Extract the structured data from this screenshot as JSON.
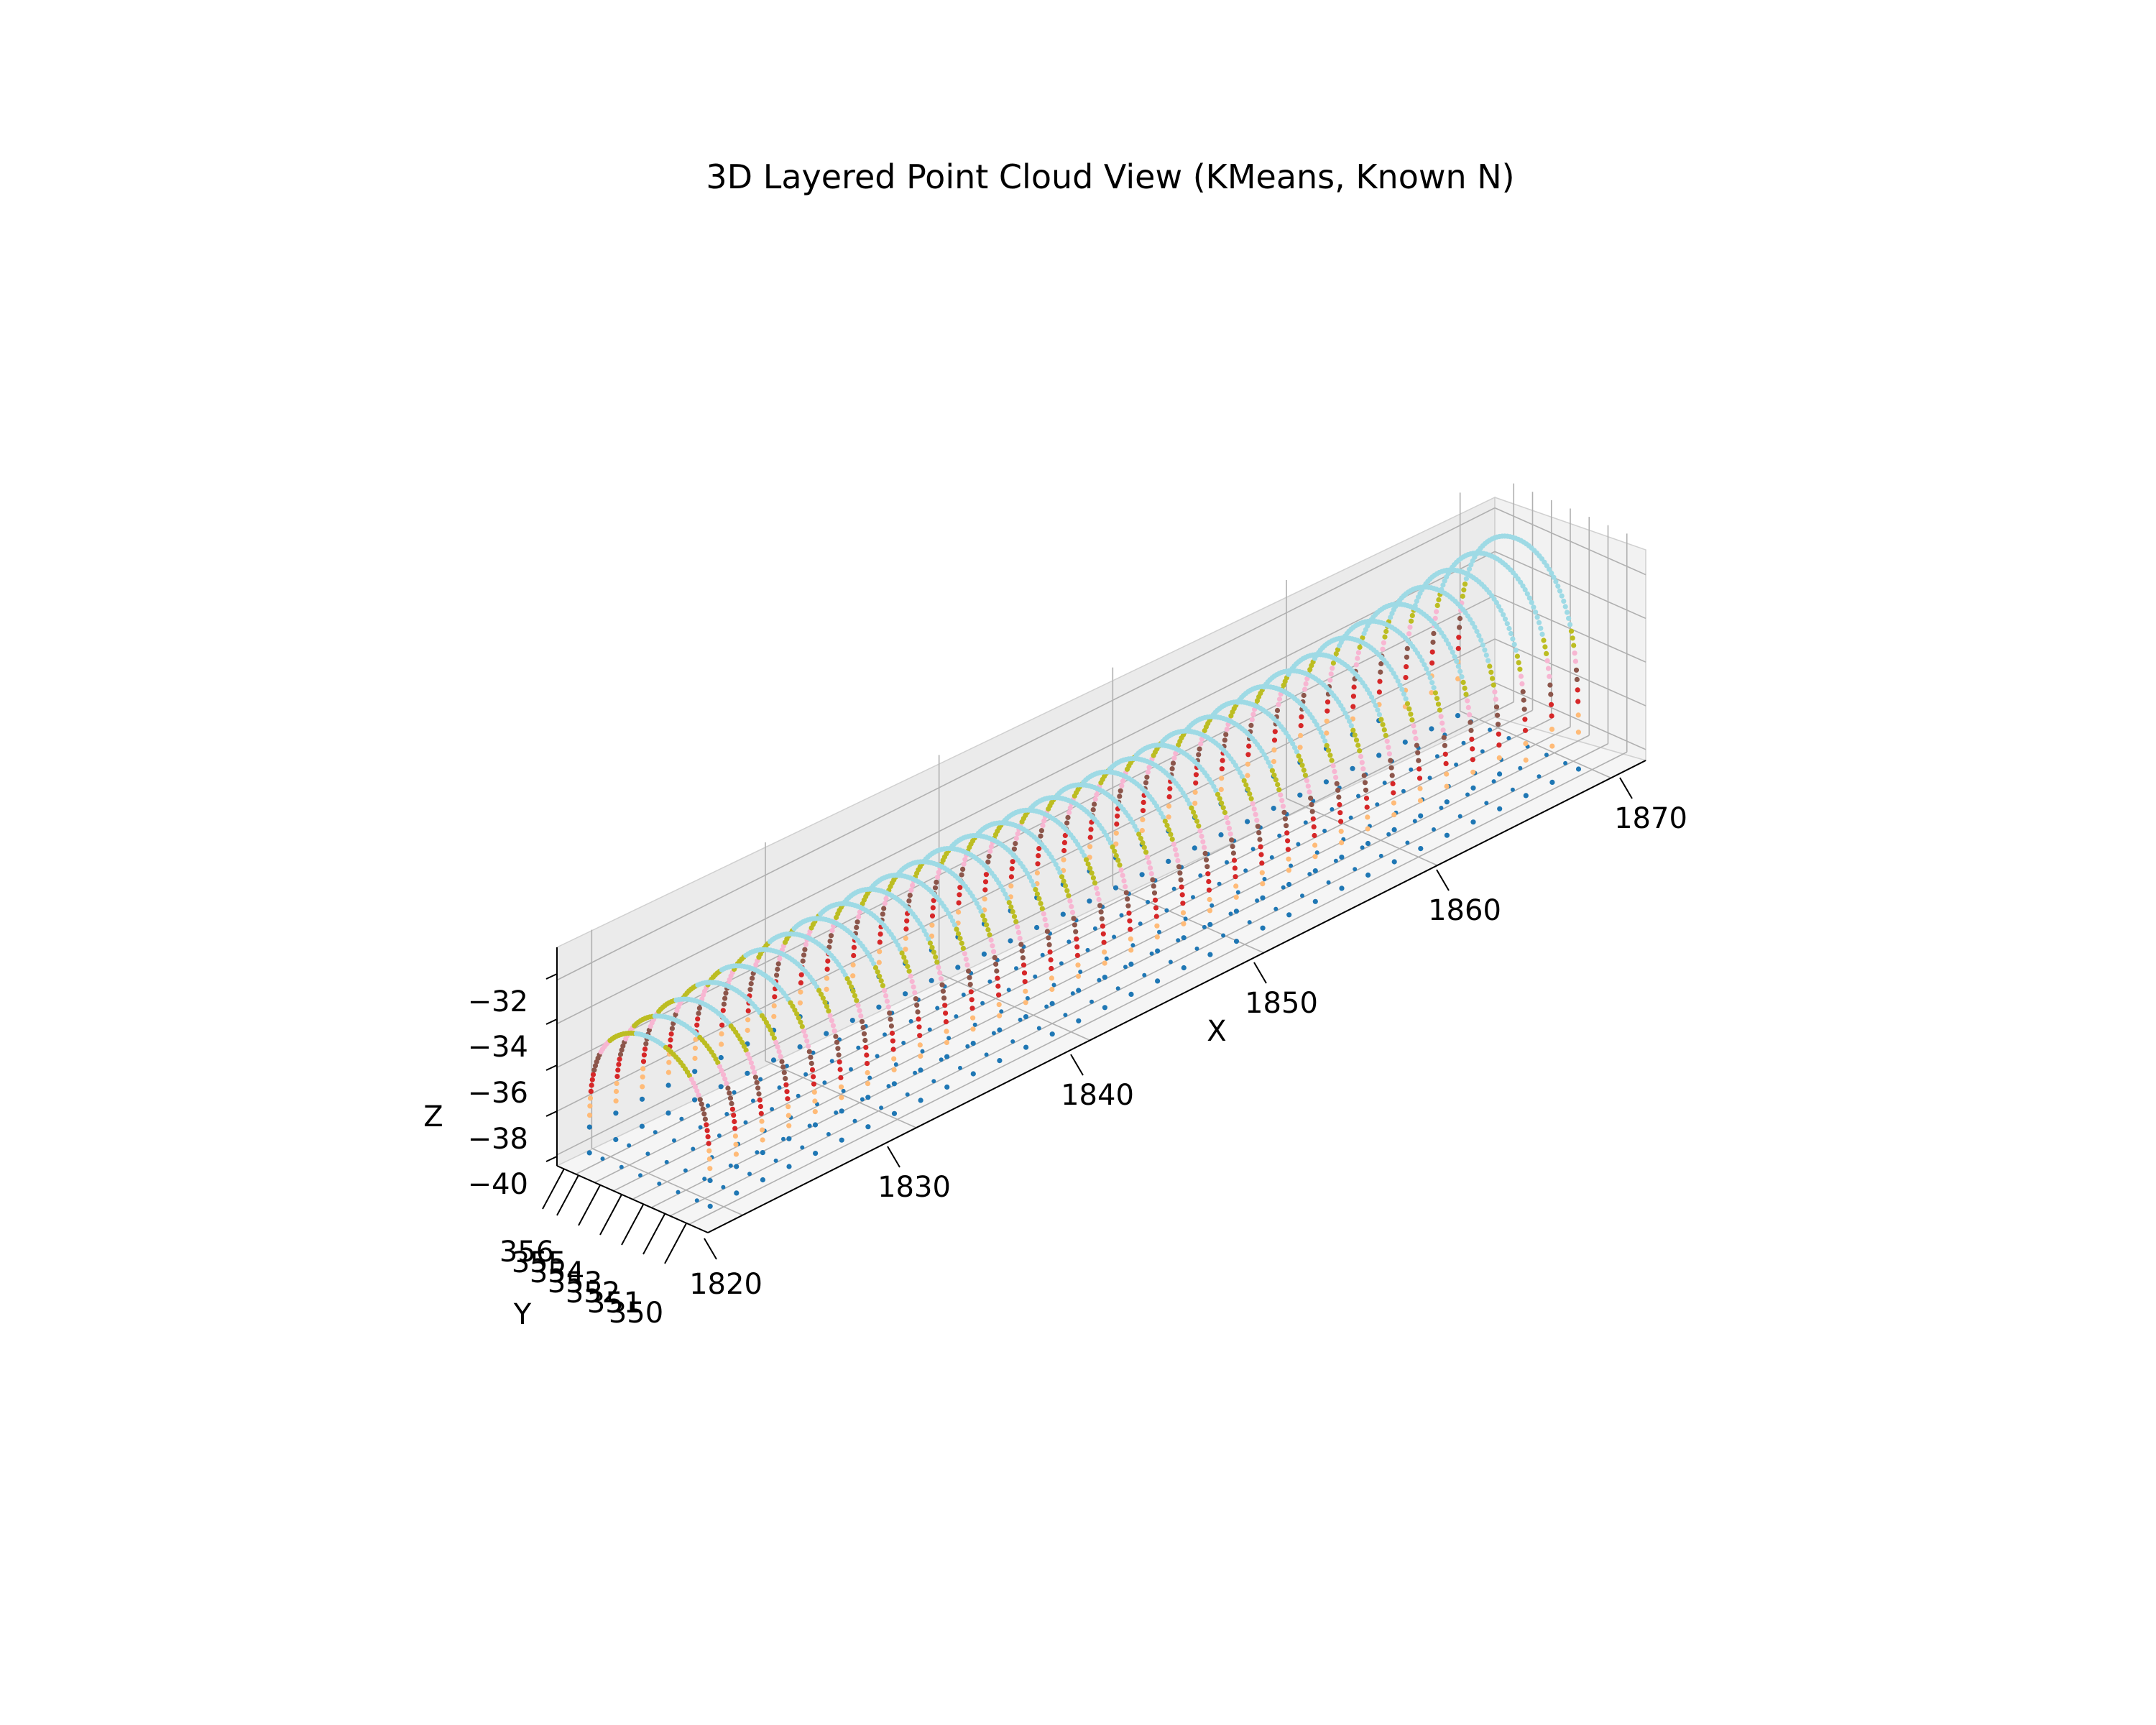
{
  "chart_data": {
    "type": "scatter",
    "projection": "3d",
    "title": "3D Layered Point Cloud View (KMeans, Known N)",
    "xlabel": "X",
    "ylabel": "Y",
    "zlabel": "Z",
    "xlim": [
      1818,
      1872
    ],
    "ylim": [
      349,
      357
    ],
    "zlim": [
      -40.5,
      -30.5
    ],
    "x_ticks": [
      "1820",
      "1830",
      "1840",
      "1850",
      "1860",
      "1870"
    ],
    "y_ticks": [
      "350",
      "351",
      "352",
      "353",
      "354",
      "355",
      "356"
    ],
    "z_ticks": [
      "−32",
      "−34",
      "−36",
      "−38",
      "−40"
    ],
    "grid": true,
    "legend": "none",
    "marker_size": "small",
    "structure": {
      "ring_count": 34,
      "ring_x_range": [
        1819,
        1869
      ],
      "tunnel_center_y": 353,
      "tunnel_half_width_y": 3.2,
      "crown_z_start": -33.5,
      "crown_z_end": -31.0,
      "base_z": -40.0
    },
    "series": [
      {
        "cluster": 0,
        "color": "#1f77b4",
        "z_range": [
          -40.0,
          -38.4
        ]
      },
      {
        "cluster": 1,
        "color": "#ffbb78",
        "z_range": [
          -38.4,
          -37.2
        ]
      },
      {
        "cluster": 2,
        "color": "#d62728",
        "z_range": [
          -37.2,
          -36.2
        ]
      },
      {
        "cluster": 3,
        "color": "#8c564b",
        "z_range": [
          -36.2,
          -35.3
        ]
      },
      {
        "cluster": 4,
        "color": "#f7b6d2",
        "z_range": [
          -35.3,
          -34.5
        ]
      },
      {
        "cluster": 5,
        "color": "#bcbd22",
        "z_range": [
          -34.5,
          -33.6
        ]
      },
      {
        "cluster": 6,
        "color": "#9edae5",
        "z_range": [
          -33.6,
          -30.5
        ]
      }
    ]
  }
}
